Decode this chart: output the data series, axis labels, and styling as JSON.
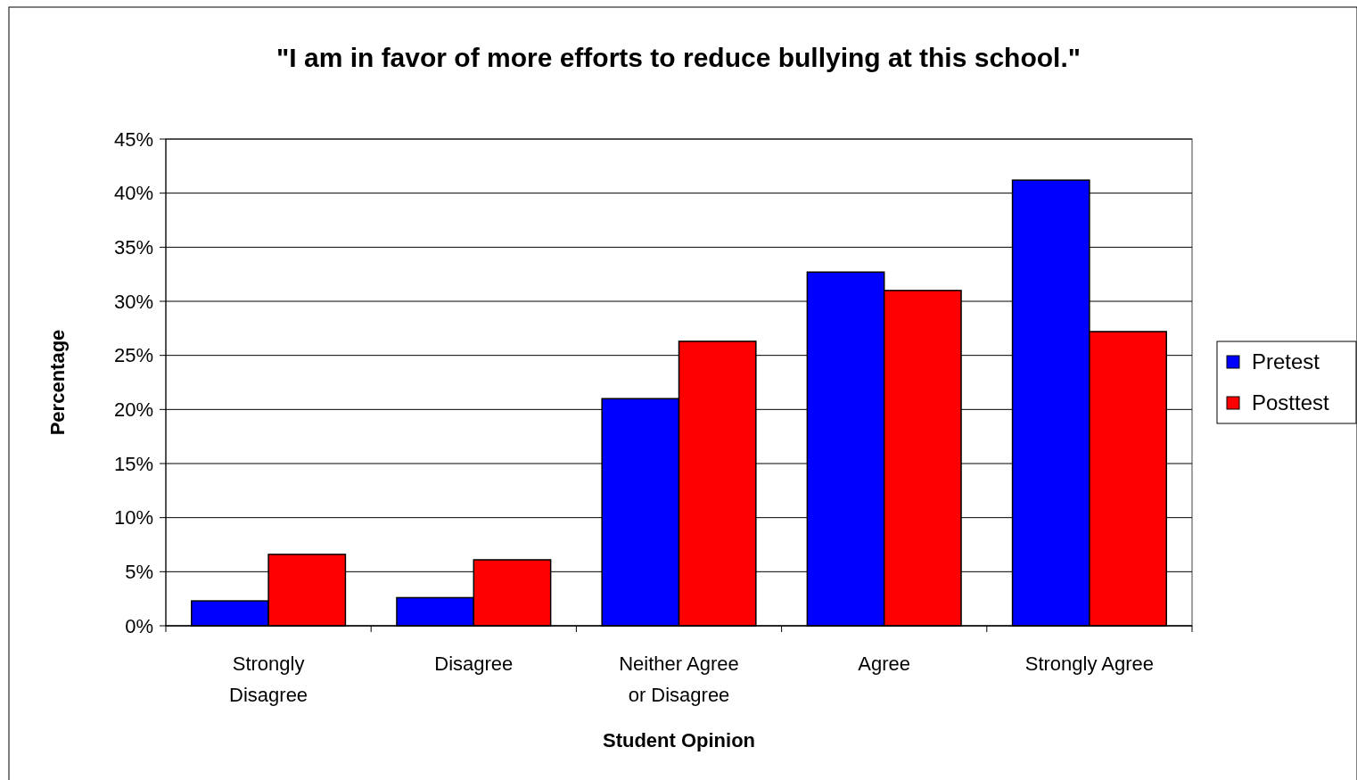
{
  "chart_data": {
    "type": "bar",
    "title": "\"I am in favor of more efforts to reduce bullying at this school.\"",
    "xlabel": "Student Opinion",
    "ylabel": "Percentage",
    "categories": [
      "Strongly Disagree",
      "Disagree",
      "Neither Agree or Disagree",
      "Agree",
      "Strongly Agree"
    ],
    "series": [
      {
        "name": "Pretest",
        "color": "#0000ff",
        "values": [
          2.3,
          2.6,
          21.0,
          32.7,
          41.2
        ]
      },
      {
        "name": "Posttest",
        "color": "#ff0000",
        "values": [
          6.6,
          6.1,
          26.3,
          31.0,
          27.2
        ]
      }
    ],
    "ylim": [
      0,
      45
    ],
    "yticks": [
      {
        "value": 0,
        "label": "0%"
      },
      {
        "value": 5,
        "label": "5%"
      },
      {
        "value": 10,
        "label": "10%"
      },
      {
        "value": 15,
        "label": "15%"
      },
      {
        "value": 20,
        "label": "20%"
      },
      {
        "value": 25,
        "label": "25%"
      },
      {
        "value": 30,
        "label": "30%"
      },
      {
        "value": 35,
        "label": "35%"
      },
      {
        "value": 40,
        "label": "40%"
      },
      {
        "value": 45,
        "label": "45%"
      }
    ],
    "grid": "y",
    "legend": "right"
  }
}
